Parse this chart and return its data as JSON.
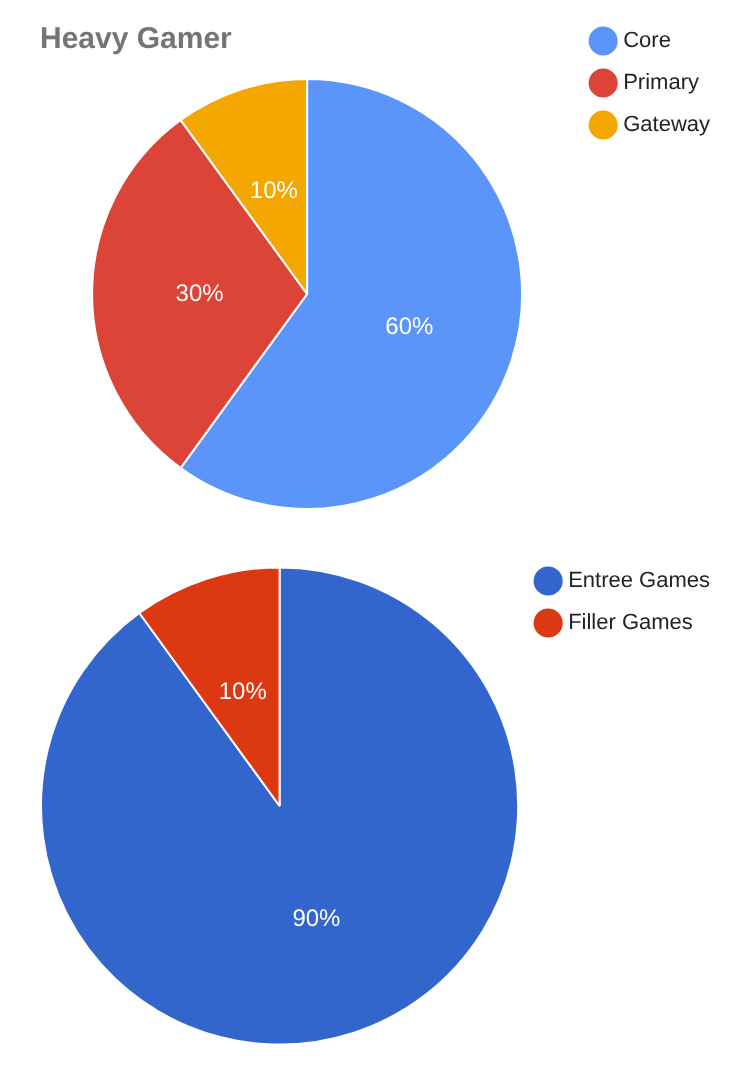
{
  "chart_data": [
    {
      "type": "pie",
      "title": "Heavy Gamer",
      "categories": [
        "Core",
        "Primary",
        "Gateway"
      ],
      "values": [
        60,
        30,
        10
      ],
      "colors": [
        "#5b95f9",
        "#db4437",
        "#f4a700"
      ],
      "value_labels": [
        "60%",
        "30%",
        "10%"
      ],
      "legend": "top right"
    },
    {
      "type": "pie",
      "categories": [
        "Entree Games",
        "Filler Games"
      ],
      "values": [
        90,
        10
      ],
      "colors": [
        "#3366cc",
        "#dc3912"
      ],
      "value_labels": [
        "90%",
        "10%"
      ],
      "legend": "top right"
    }
  ]
}
